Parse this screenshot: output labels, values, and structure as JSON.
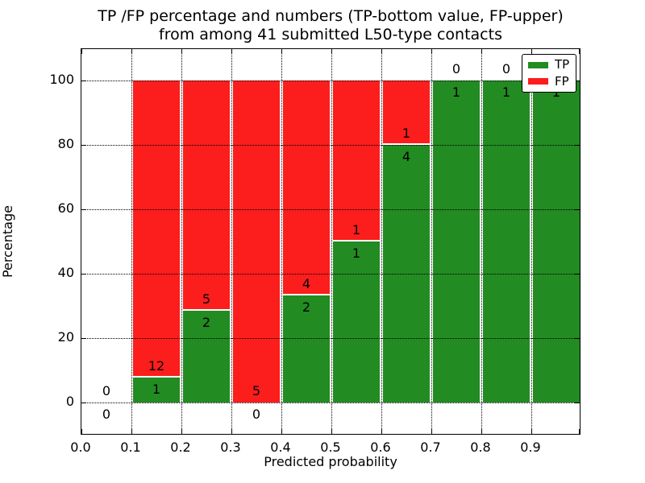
{
  "figure": {
    "title_line1": "TP /FP percentage and numbers (TP-bottom value, FP-upper)",
    "title_line2": "from among 41 submitted L50-type contacts"
  },
  "axes": {
    "xlabel": "Predicted probability",
    "ylabel": "Percentage",
    "xtick_labels": [
      "0.0",
      "0.1",
      "0.2",
      "0.3",
      "0.4",
      "0.5",
      "0.6",
      "0.7",
      "0.8",
      "0.9"
    ],
    "ytick_labels": [
      "0",
      "20",
      "40",
      "60",
      "80",
      "100"
    ]
  },
  "legend": {
    "entries": [
      {
        "label": "TP",
        "color": "#228b22"
      },
      {
        "label": "FP",
        "color": "#fc1d1d"
      }
    ]
  },
  "colors": {
    "tp": "#228b22",
    "fp": "#fc1d1d",
    "grid": "#000000",
    "text": "#000000",
    "background": "#ffffff"
  },
  "chart_data": {
    "type": "bar",
    "stacked": true,
    "normalized_to_percent": true,
    "title": "TP /FP percentage and numbers (TP-bottom value, FP-upper)\nfrom among 41 submitted L50-type contacts",
    "xlabel": "Predicted probability",
    "ylabel": "Percentage",
    "total_contacts": 41,
    "xlim": [
      0.0,
      1.0
    ],
    "ylim": [
      -10.25,
      109.75
    ],
    "xticks": [
      0.0,
      0.1,
      0.2,
      0.3,
      0.4,
      0.5,
      0.6,
      0.7,
      0.8,
      0.9
    ],
    "yticks": [
      0,
      20,
      40,
      60,
      80,
      100
    ],
    "grid": true,
    "grid_style": "dotted",
    "legend_position": "upper right",
    "categories": [
      "0.0-0.1",
      "0.1-0.2",
      "0.2-0.3",
      "0.3-0.4",
      "0.4-0.5",
      "0.5-0.6",
      "0.6-0.7",
      "0.7-0.8",
      "0.8-0.9",
      "0.9-1.0"
    ],
    "series": [
      {
        "name": "TP",
        "color": "#228b22",
        "counts": [
          0,
          1,
          2,
          0,
          2,
          1,
          4,
          1,
          1,
          1
        ],
        "percent": [
          0,
          7.7,
          28.6,
          0,
          33.3,
          50,
          80,
          100,
          100,
          100
        ]
      },
      {
        "name": "FP",
        "color": "#fc1d1d",
        "counts": [
          0,
          12,
          5,
          5,
          4,
          1,
          1,
          0,
          0,
          0
        ],
        "percent": [
          0,
          92.3,
          71.4,
          100,
          66.7,
          50,
          20,
          0,
          0,
          0
        ]
      }
    ]
  }
}
